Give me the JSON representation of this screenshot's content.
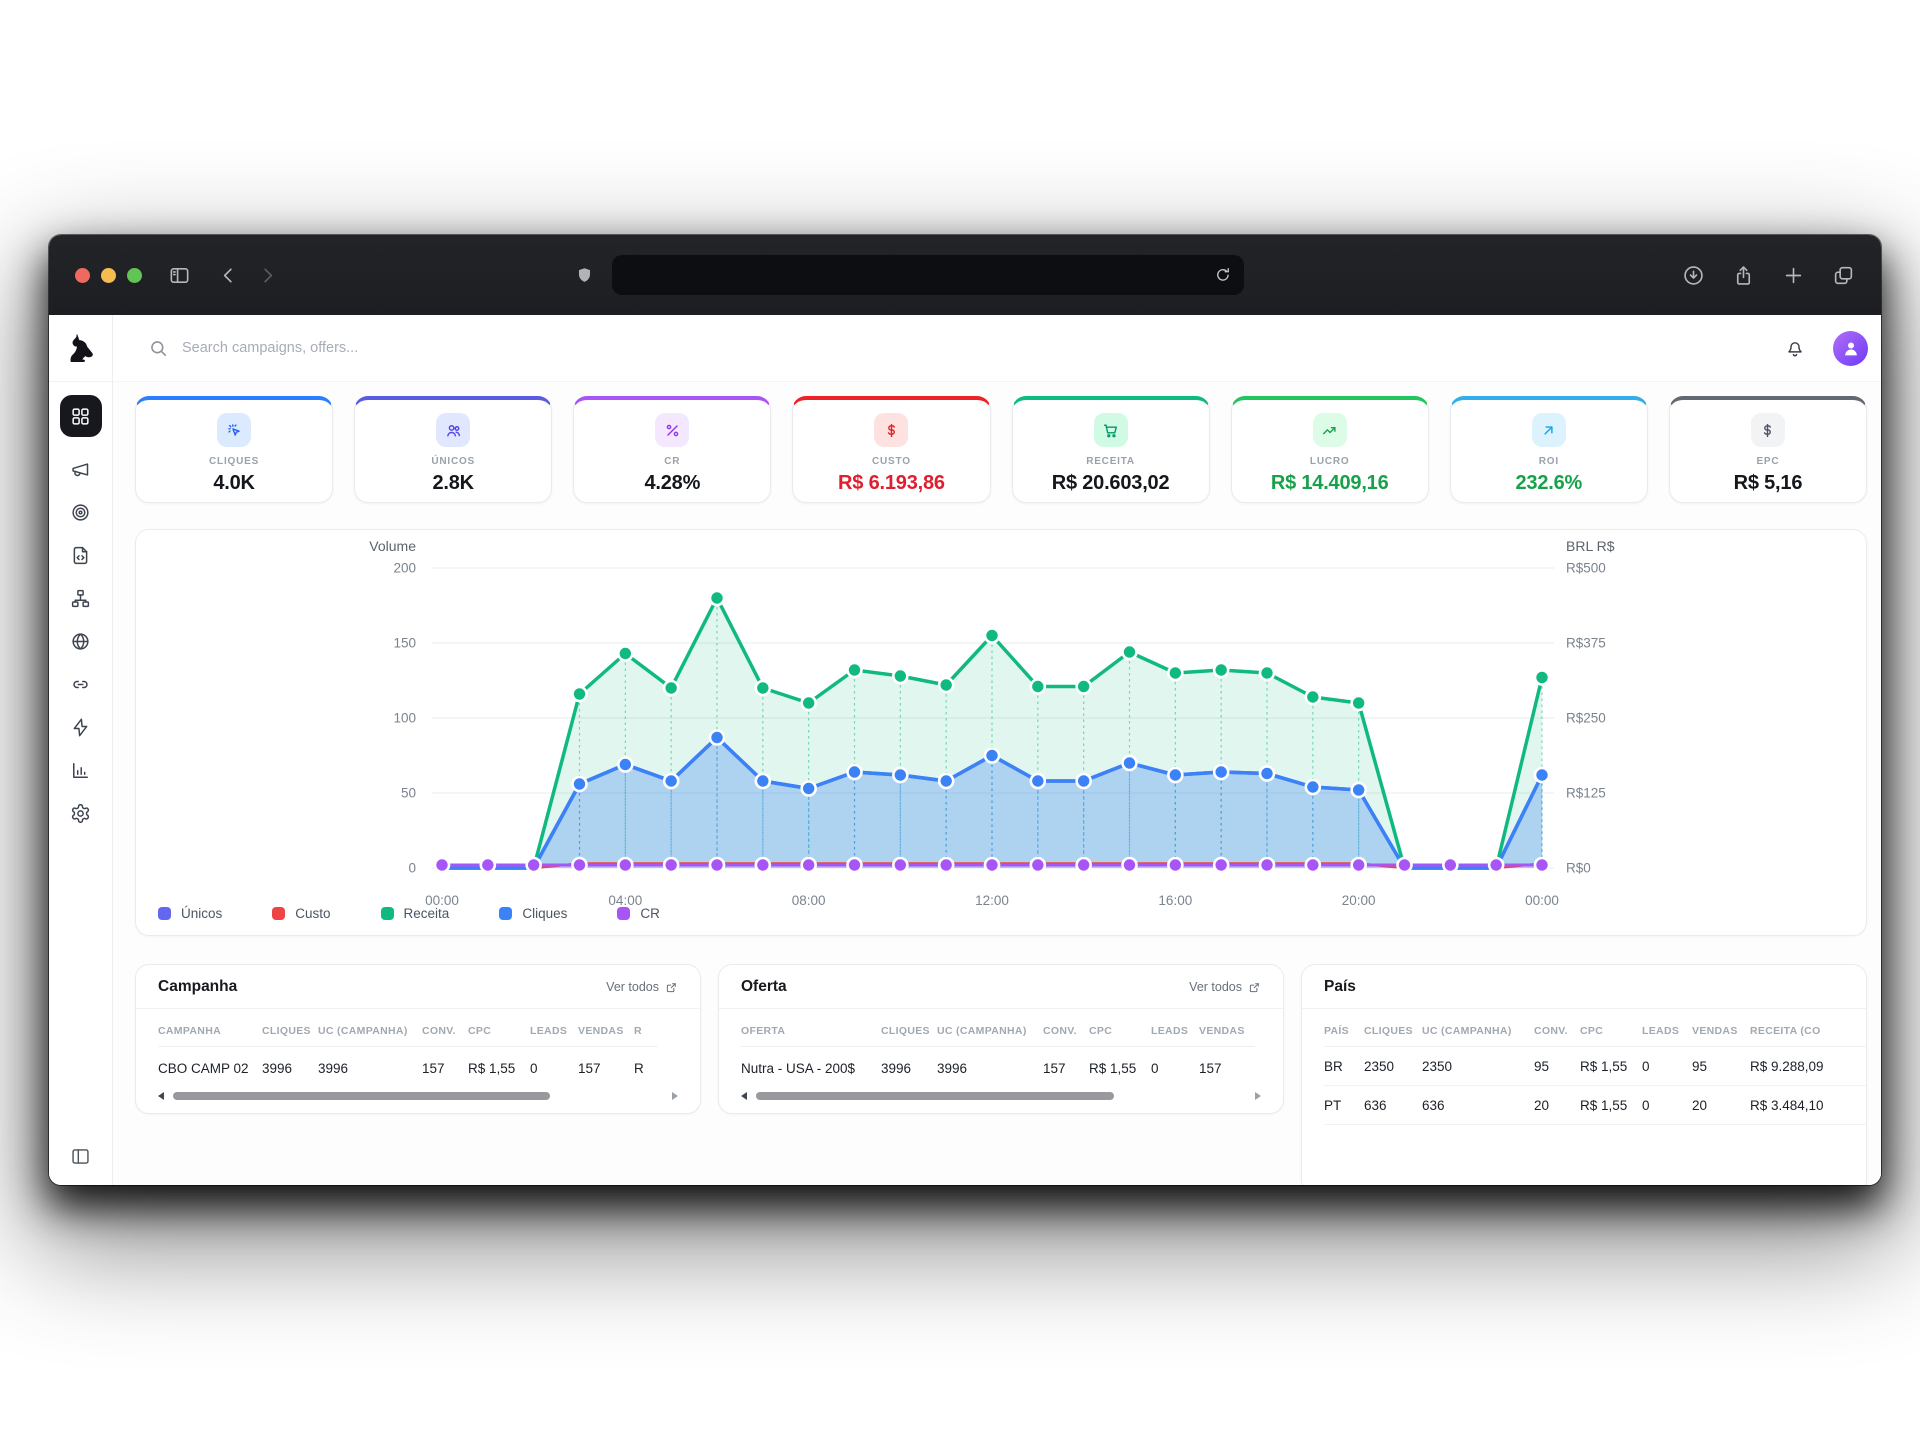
{
  "browser": {
    "traffic_lights": [
      {
        "name": "close",
        "color": "#ee6a5f"
      },
      {
        "name": "minimize",
        "color": "#f5bd4f"
      },
      {
        "name": "zoom",
        "color": "#61c454"
      }
    ],
    "toolbar_icons_left": [
      "sidebar-toggle-icon",
      "chevron-left-icon",
      "chevron-right-icon"
    ],
    "address_bar": {
      "value": "",
      "icons": [
        "shield-icon",
        "reload-icon"
      ]
    },
    "toolbar_icons_right": [
      "download-icon",
      "share-icon",
      "new-tab-icon",
      "tabs-icon"
    ]
  },
  "sidebar": {
    "logo_icon": "dog-logo",
    "items": [
      {
        "name": "dashboard",
        "icon": "grid-icon",
        "active": true
      },
      {
        "name": "campaigns",
        "icon": "megaphone-icon",
        "active": false
      },
      {
        "name": "offers",
        "icon": "target-icon",
        "active": false
      },
      {
        "name": "landing-pages",
        "icon": "file-code-icon",
        "active": false
      },
      {
        "name": "flows",
        "icon": "sitemap-icon",
        "active": false
      },
      {
        "name": "domains",
        "icon": "globe-icon",
        "active": false
      },
      {
        "name": "links",
        "icon": "link-icon",
        "active": false
      },
      {
        "name": "automation",
        "icon": "zap-icon",
        "active": false
      },
      {
        "name": "reports",
        "icon": "bar-chart-icon",
        "active": false
      },
      {
        "name": "settings",
        "icon": "gear-icon",
        "active": false
      }
    ],
    "collapse_icon": "panel-left-icon"
  },
  "header": {
    "search_placeholder": "Search campaigns, offers...",
    "icons": [
      "search-icon",
      "bell-icon",
      "avatar"
    ]
  },
  "kpis": [
    {
      "label": "CLIQUES",
      "value": "4.0K",
      "accent": "#2b7fff",
      "chip_bg": "#dbeafe",
      "icon": "cursor-click-icon",
      "icon_color": "#2563eb",
      "value_color": "#14171c"
    },
    {
      "label": "ÚNICOS",
      "value": "2.8K",
      "accent": "#5a5be0",
      "chip_bg": "#e0e7ff",
      "icon": "users-icon",
      "icon_color": "#4f46e5",
      "value_color": "#14171c"
    },
    {
      "label": "CR",
      "value": "4.28%",
      "accent": "#a855f7",
      "chip_bg": "#f3e8ff",
      "icon": "percent-icon",
      "icon_color": "#9333ea",
      "value_color": "#14171c"
    },
    {
      "label": "CUSTO",
      "value": "R$ 6.193,86",
      "accent": "#ec2227",
      "chip_bg": "#fee2e2",
      "icon": "dollar-icon",
      "icon_color": "#dc2626",
      "value_color": "#e11d2e"
    },
    {
      "label": "RECEITA",
      "value": "R$ 20.603,02",
      "accent": "#0eba7f",
      "chip_bg": "#d1fae5",
      "icon": "cart-icon",
      "icon_color": "#059669",
      "value_color": "#14171c"
    },
    {
      "label": "LUCRO",
      "value": "R$ 14.409,16",
      "accent": "#22c55e",
      "chip_bg": "#dcfce7",
      "icon": "trending-up-icon",
      "icon_color": "#16a34a",
      "value_color": "#17a24a"
    },
    {
      "label": "ROI",
      "value": "232.6%",
      "accent": "#31aee9",
      "chip_bg": "#dcf3fe",
      "icon": "arrow-up-right-icon",
      "icon_color": "#0ea5e9",
      "value_color": "#17a24a"
    },
    {
      "label": "EPC",
      "value": "R$ 5,16",
      "accent": "#636872",
      "chip_bg": "#f1f3f5",
      "icon": "dollar-icon",
      "icon_color": "#4b5563",
      "value_color": "#14171c"
    }
  ],
  "chart_data": {
    "type": "line",
    "grid": true,
    "legend_position": "bottom-left",
    "x": [
      "00:00",
      "01:00",
      "02:00",
      "03:00",
      "04:00",
      "05:00",
      "06:00",
      "07:00",
      "08:00",
      "09:00",
      "10:00",
      "11:00",
      "12:00",
      "13:00",
      "14:00",
      "15:00",
      "16:00",
      "17:00",
      "18:00",
      "19:00",
      "20:00",
      "21:00",
      "22:00",
      "23:00",
      "00:00"
    ],
    "x_tick_positions": [
      0,
      4,
      8,
      12,
      16,
      20,
      24
    ],
    "x_tick_labels": [
      "00:00",
      "04:00",
      "08:00",
      "12:00",
      "16:00",
      "20:00",
      "00:00"
    ],
    "left_axis": {
      "title": "Volume",
      "range": [
        0,
        200
      ],
      "ticks": [
        200,
        150,
        100,
        50,
        0
      ],
      "tick_labels": [
        "200",
        "150",
        "100",
        "50",
        "0"
      ]
    },
    "right_axis": {
      "title": "BRL R$",
      "tick_labels": [
        "R$500",
        "R$375",
        "R$250",
        "R$125",
        "R$0"
      ]
    },
    "series": [
      {
        "name": "Únicos",
        "color": "#6366f1",
        "values": [
          0,
          0,
          0,
          56,
          69,
          58,
          87,
          58,
          53,
          64,
          62,
          58,
          75,
          58,
          58,
          70,
          62,
          64,
          63,
          54,
          52,
          0,
          0,
          0,
          62
        ]
      },
      {
        "name": "Custo",
        "color": "#ef4444",
        "values": [
          0,
          0,
          0,
          3,
          3,
          3,
          3,
          3,
          3,
          3,
          3,
          3,
          3,
          3,
          3,
          3,
          3,
          3,
          3,
          3,
          3,
          0,
          0,
          0,
          3
        ]
      },
      {
        "name": "Receita",
        "color": "#10b981",
        "values": [
          0,
          0,
          0,
          116,
          143,
          120,
          180,
          120,
          110,
          132,
          128,
          122,
          155,
          121,
          121,
          144,
          130,
          132,
          130,
          114,
          110,
          0,
          0,
          0,
          127
        ]
      },
      {
        "name": "Cliques",
        "color": "#3b82f6",
        "values": [
          0,
          0,
          0,
          56,
          69,
          58,
          87,
          58,
          53,
          64,
          62,
          58,
          75,
          58,
          58,
          70,
          62,
          64,
          63,
          54,
          52,
          0,
          0,
          0,
          62
        ]
      },
      {
        "name": "CR",
        "color": "#a855f7",
        "values": [
          2,
          2,
          2,
          2,
          2,
          2,
          2,
          2,
          2,
          2,
          2,
          2,
          2,
          2,
          2,
          2,
          2,
          2,
          2,
          2,
          2,
          2,
          2,
          2,
          2
        ]
      }
    ]
  },
  "tables": [
    {
      "title": "Campanha",
      "link": "Ver todos",
      "columns": [
        "CAMPANHA",
        "CLIQUES",
        "UC (CAMPANHA)",
        "CONV.",
        "CPC",
        "LEADS",
        "VENDAS",
        "R"
      ],
      "rows": [
        [
          "CBO CAMP 02",
          "3996",
          "3996",
          "157",
          "R$ 1,55",
          "0",
          "157",
          "R"
        ]
      ],
      "scrollbar": true
    },
    {
      "title": "Oferta",
      "link": "Ver todos",
      "columns": [
        "OFERTA",
        "CLIQUES",
        "UC (CAMPANHA)",
        "CONV.",
        "CPC",
        "LEADS",
        "VENDAS"
      ],
      "rows": [
        [
          "Nutra - USA - 200$",
          "3996",
          "3996",
          "157",
          "R$ 1,55",
          "0",
          "157"
        ]
      ],
      "scrollbar": true
    },
    {
      "title": "País",
      "link": null,
      "columns": [
        "PAÍS",
        "CLIQUES",
        "UC (CAMPANHA)",
        "CONV.",
        "CPC",
        "LEADS",
        "VENDAS",
        "RECEITA (CO"
      ],
      "rows": [
        [
          "BR",
          "2350",
          "2350",
          "95",
          "R$ 1,55",
          "0",
          "95",
          "R$ 9.288,09"
        ],
        [
          "PT",
          "636",
          "636",
          "20",
          "R$ 1,55",
          "0",
          "20",
          "R$ 3.484,10"
        ]
      ],
      "scrollbar": false
    }
  ]
}
